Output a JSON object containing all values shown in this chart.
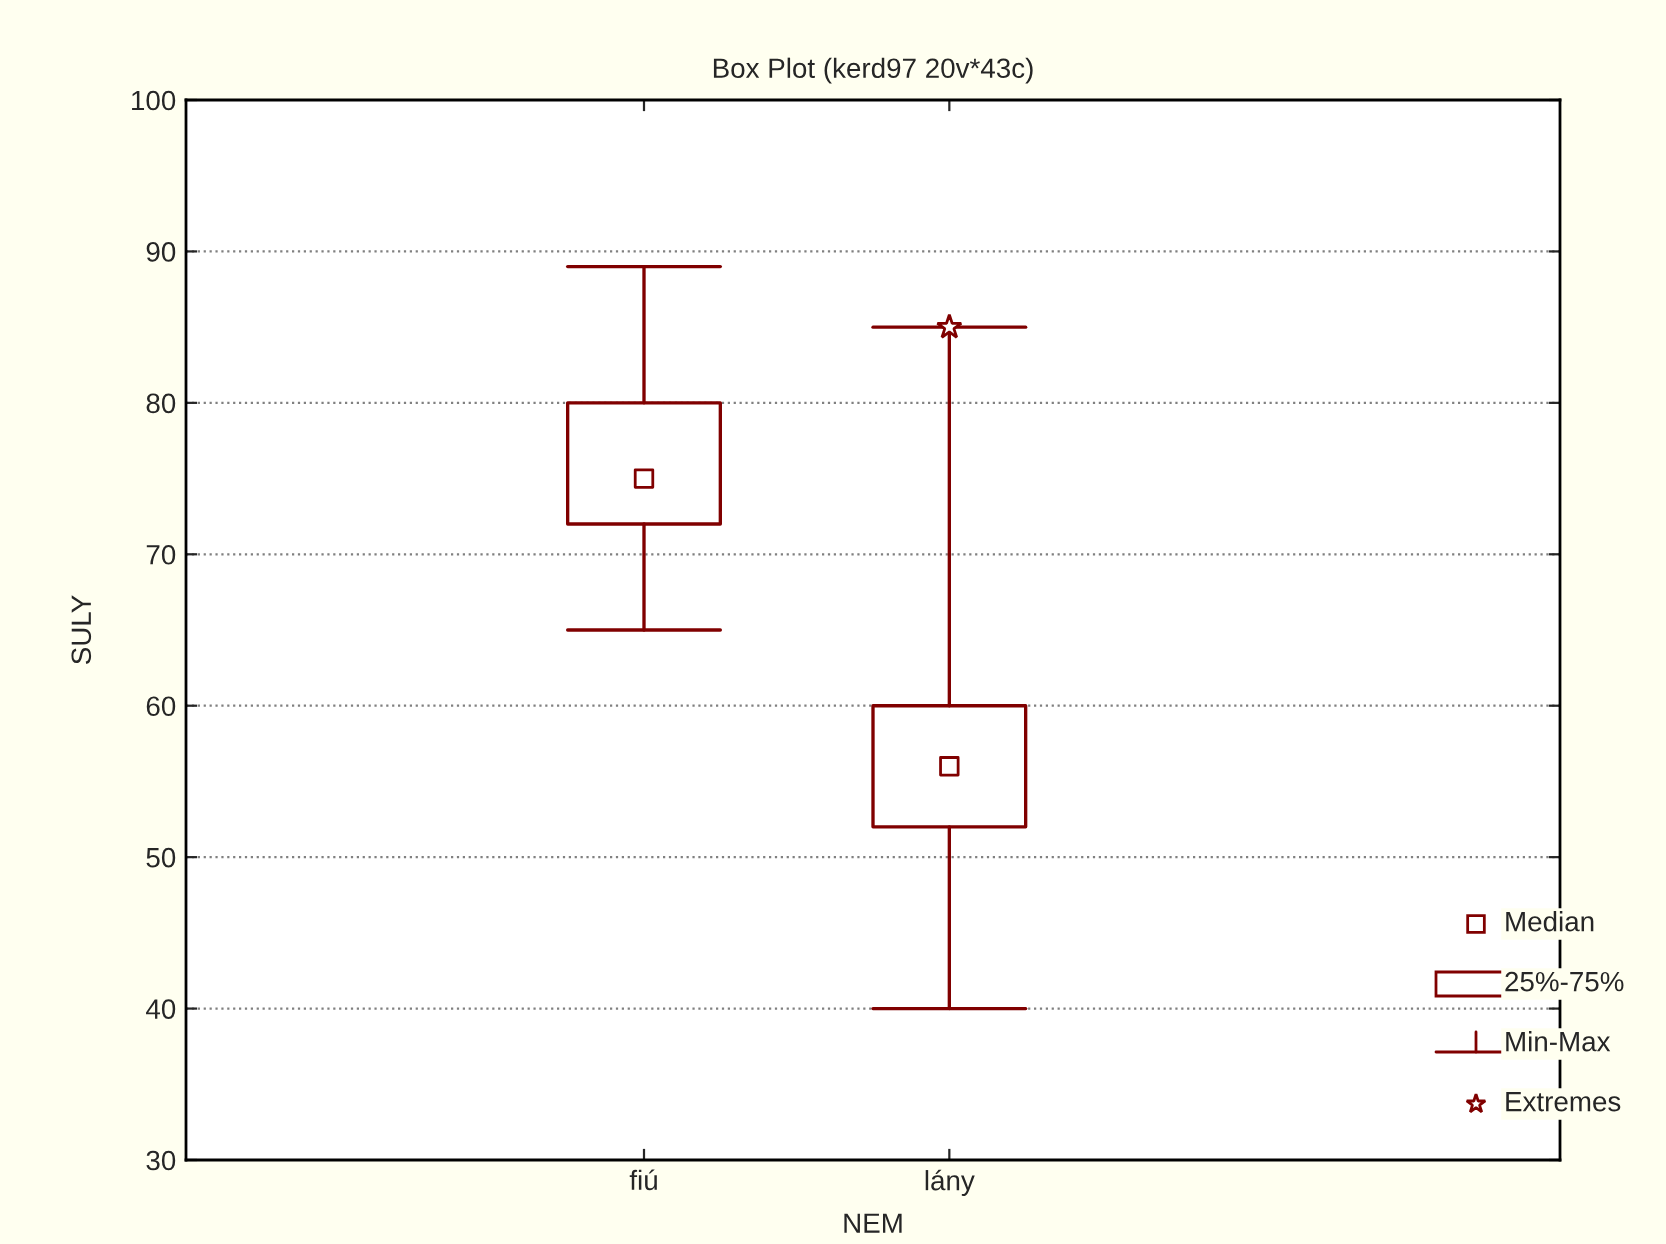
{
  "chart_data": {
    "type": "box",
    "title": "Box Plot (kerd97 20v*43c)",
    "xlabel": "NEM",
    "ylabel": "SULY",
    "categories": [
      "fiú",
      "lány"
    ],
    "boxes": [
      {
        "low": 65,
        "q1": 72,
        "median": 75,
        "q3": 80,
        "high": 89
      },
      {
        "low": 40,
        "q1": 52,
        "median": 56,
        "q3": 60,
        "high": 85,
        "outliers": [
          85
        ]
      }
    ],
    "color": "#800000",
    "ylim": [
      30,
      100
    ],
    "yticks": [
      30,
      40,
      50,
      60,
      70,
      80,
      90,
      100
    ],
    "grid": "y",
    "annotations": [
      "Median",
      "25%-75%",
      "Min-Max",
      "Extremes"
    ]
  }
}
